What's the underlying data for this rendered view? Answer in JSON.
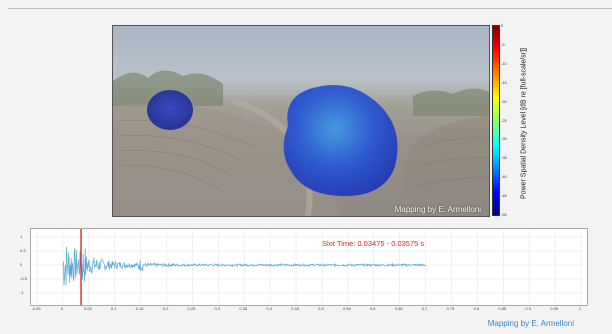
{
  "panorama": {
    "watermark": "Mapping by E. Armelloni"
  },
  "colorbar": {
    "label": "Power Spatial Density Level [dB re [full-scale/sr]]",
    "ticks": [
      "0",
      "-5",
      "-10",
      "-15",
      "-20",
      "-25",
      "-30",
      "-35",
      "-40",
      "-45",
      "-50"
    ]
  },
  "waveform": {
    "slot_text": "Slot Time: 0.03475 - 0.03575 s",
    "y_ticks": [
      "1",
      "0.5",
      "0",
      "-0.5",
      "-1"
    ],
    "x_ticks": [
      "-0.05",
      "0",
      "0.05",
      "0.1",
      "0.15",
      "0.2",
      "0.25",
      "0.3",
      "0.35",
      "0.4",
      "0.45",
      "0.5",
      "0.55",
      "0.6",
      "0.65",
      "0.7",
      "0.75",
      "0.8",
      "0.85",
      "0.9",
      "0.95",
      "1"
    ],
    "cursor_time": 0.035
  },
  "footer": {
    "credit": "Mapping by E. Armelloni"
  },
  "colors": {
    "cursor": "#d42a2a",
    "signal": "#5aa7d6",
    "credit": "#3a86c8"
  }
}
